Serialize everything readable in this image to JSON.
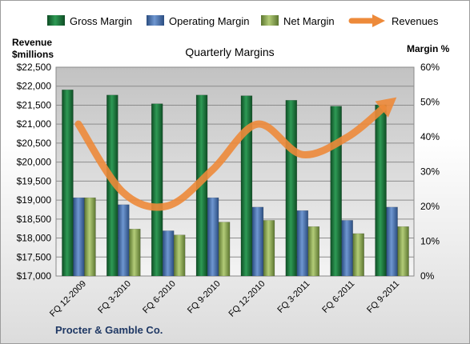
{
  "chart_data": {
    "type": "bar",
    "title": "Quarterly Margins",
    "footer": "Procter & Gamble Co.",
    "y_left_label": [
      "Revenue",
      "$millions"
    ],
    "y_right_label": "Margin %",
    "categories": [
      "FQ 12-2009",
      "FQ 3-2010",
      "FQ 6-2010",
      "FQ 9-2010",
      "FQ 12-2010",
      "FQ 3-2011",
      "FQ 6-2011",
      "FQ 9-2011"
    ],
    "ylim_left": [
      17000,
      22500
    ],
    "ylim_right": [
      0,
      60
    ],
    "left_ticks": [
      "$17,000",
      "$17,500",
      "$18,000",
      "$18,500",
      "$19,000",
      "$19,500",
      "$20,000",
      "$20,500",
      "$21,000",
      "$21,500",
      "$22,000",
      "$22,500"
    ],
    "right_ticks": [
      "0%",
      "10%",
      "20%",
      "30%",
      "40%",
      "50%",
      "60%"
    ],
    "series": [
      {
        "name": "Gross Margin",
        "axis": "right",
        "type": "bar",
        "color": "#1f7a3f",
        "values": [
          53.5,
          52,
          49.5,
          52,
          51.8,
          50.5,
          48.8,
          49.2
        ]
      },
      {
        "name": "Operating Margin",
        "axis": "right",
        "type": "bar",
        "color": "#4a78b8",
        "values": [
          22.5,
          20.5,
          13,
          22.5,
          19.8,
          18.8,
          16,
          19.8
        ]
      },
      {
        "name": "Net Margin",
        "axis": "right",
        "type": "bar",
        "color": "#8fae4f",
        "values": [
          22.5,
          13.5,
          11.8,
          15.5,
          16,
          14.2,
          12.2,
          14.2
        ]
      },
      {
        "name": "Revenues",
        "axis": "left",
        "type": "line",
        "color": "#ed8a3a",
        "values": [
          21000,
          19200,
          18850,
          19800,
          21000,
          20200,
          20650,
          21600
        ]
      }
    ],
    "grid": true,
    "legend": "top"
  }
}
